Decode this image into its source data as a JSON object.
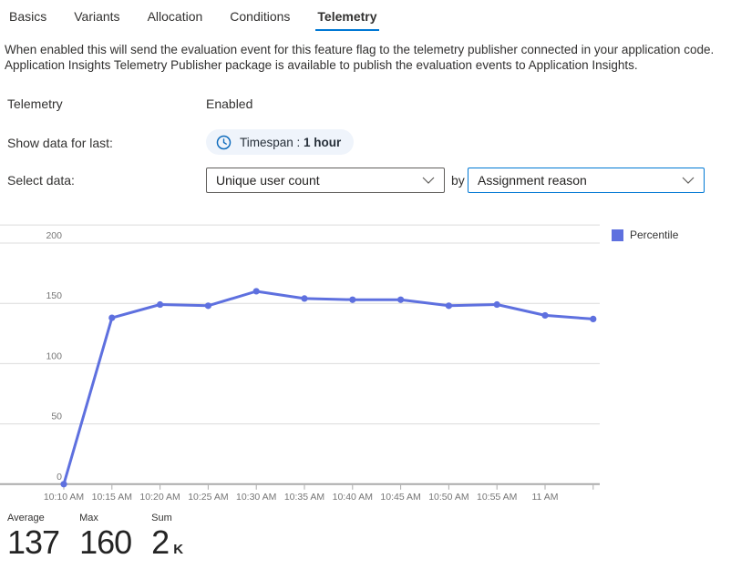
{
  "tabs": {
    "items": [
      {
        "label": "Basics",
        "active": false
      },
      {
        "label": "Variants",
        "active": false
      },
      {
        "label": "Allocation",
        "active": false
      },
      {
        "label": "Conditions",
        "active": false
      },
      {
        "label": "Telemetry",
        "active": true
      }
    ]
  },
  "description": "When enabled this will send the evaluation event for this feature flag to the telemetry publisher connected in your application code. Application Insights Telemetry Publisher package is available to publish the evaluation events to Application Insights.",
  "form": {
    "telemetry_label": "Telemetry",
    "telemetry_value": "Enabled",
    "timespan_label": "Show data for last:",
    "timespan_chip_prefix": "Timespan :",
    "timespan_chip_value": "1 hour",
    "select_data_label": "Select data:",
    "metric_dropdown_value": "Unique user count",
    "by_label": "by",
    "dimension_dropdown_value": "Assignment reason"
  },
  "chart_data": {
    "type": "line",
    "title": "",
    "legend": [
      {
        "label": "Percentile",
        "color": "#5e70df"
      }
    ],
    "legend_position": "top-right",
    "grid": true,
    "x_tick_labels": [
      "10:10 AM",
      "10:15 AM",
      "10:20 AM",
      "10:25 AM",
      "10:30 AM",
      "10:35 AM",
      "10:40 AM",
      "10:45 AM",
      "10:50 AM",
      "10:55 AM",
      "11 AM"
    ],
    "series": [
      {
        "name": "Percentile",
        "values": [
          0,
          138,
          149,
          148,
          160,
          154,
          153,
          153,
          148,
          149,
          140,
          137
        ]
      }
    ],
    "y_ticks": [
      0,
      50,
      100,
      150,
      200
    ],
    "ylim": [
      0,
      215
    ],
    "xlabel": "",
    "ylabel": ""
  },
  "stats": [
    {
      "label": "Average",
      "value": "137",
      "suffix": ""
    },
    {
      "label": "Max",
      "value": "160",
      "suffix": ""
    },
    {
      "label": "Sum",
      "value": "2",
      "suffix": "K"
    }
  ],
  "colors": {
    "accent": "#0078d4",
    "line": "#5e70df",
    "grid": "#dcdcdc",
    "axis": "#ababab",
    "axis_text": "#767676",
    "text": "#323130"
  }
}
